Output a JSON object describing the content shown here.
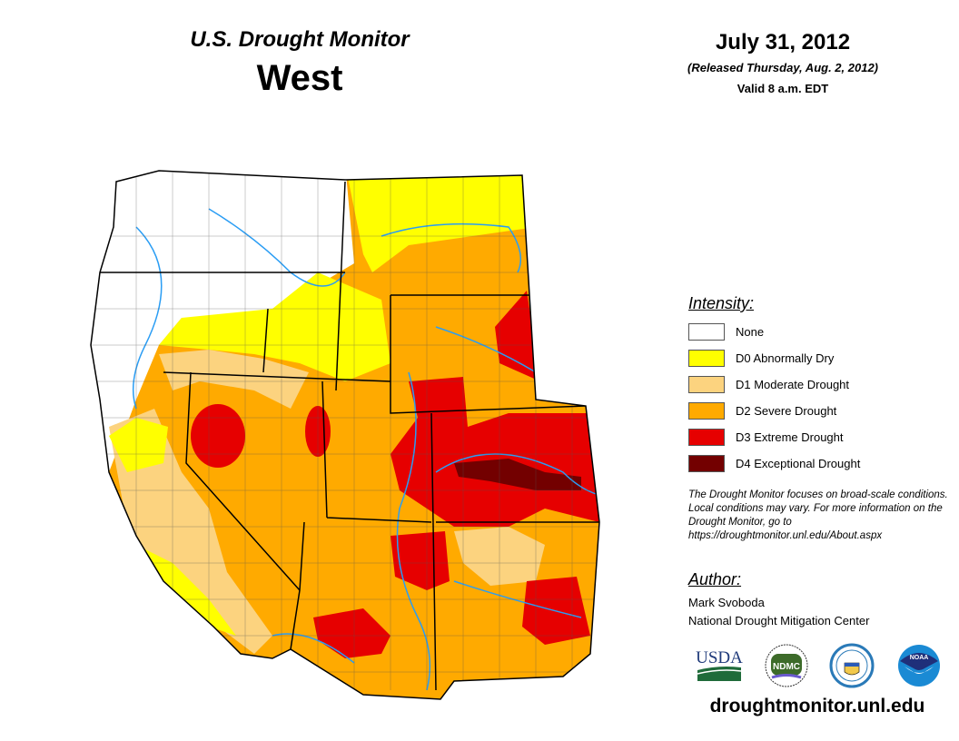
{
  "header": {
    "title": "U.S. Drought Monitor",
    "region": "West",
    "date": "July 31, 2012",
    "released": "(Released Thursday, Aug. 2, 2012)",
    "valid": "Valid 8 a.m. EDT"
  },
  "legend": {
    "title": "Intensity:",
    "items": [
      {
        "label": "None",
        "color": "#ffffff"
      },
      {
        "label": "D0 Abnormally Dry",
        "color": "#ffff00"
      },
      {
        "label": "D1 Moderate Drought",
        "color": "#fcd37f"
      },
      {
        "label": "D2 Severe Drought",
        "color": "#ffaa00"
      },
      {
        "label": "D3 Extreme Drought",
        "color": "#e60000"
      },
      {
        "label": "D4 Exceptional Drought",
        "color": "#730000"
      }
    ]
  },
  "note": "The Drought Monitor focuses on broad-scale conditions. Local conditions may vary. For more information on the Drought Monitor, go to https://droughtmonitor.unl.edu/About.aspx",
  "author": {
    "title": "Author:",
    "name": "Mark Svoboda",
    "org": "National Drought Mitigation Center"
  },
  "logos": [
    "USDA",
    "NDMC",
    "Department of Commerce",
    "NOAA"
  ],
  "url": "droughtmonitor.unl.edu"
}
